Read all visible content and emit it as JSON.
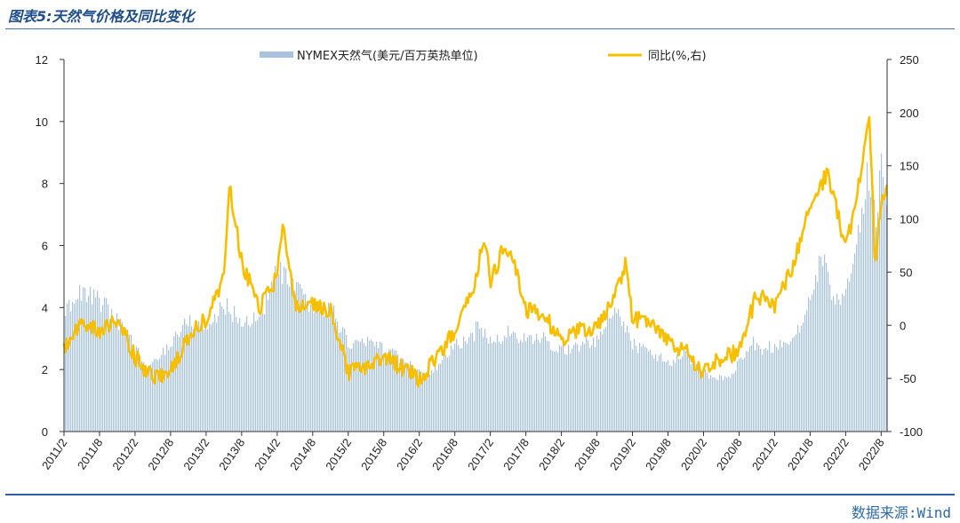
{
  "header": {
    "title": "图表5:天然气价格及同比变化"
  },
  "footer": {
    "source": "数据来源:Wind"
  },
  "colors": {
    "bars": "#a9c2df",
    "line": "#f7bf00",
    "axis": "#333333",
    "title": "#1f4e8a",
    "source": "#2d6aa6"
  },
  "chart_data": {
    "type": "area",
    "legend": {
      "placement": "top",
      "bar_label": "NYMEX天然气(美元/百万英热单位)",
      "line_label": "同比(%,右)"
    },
    "x_tick_labels": [
      "2011/2",
      "2011/8",
      "2012/2",
      "2012/8",
      "2013/2",
      "2013/8",
      "2014/2",
      "2014/8",
      "2015/2",
      "2015/8",
      "2016/2",
      "2016/8",
      "2017/2",
      "2017/8",
      "2018/2",
      "2018/8",
      "2019/2",
      "2019/8",
      "2020/2",
      "2020/8",
      "2021/2",
      "2021/8",
      "2022/2",
      "2022/8"
    ],
    "y_left": {
      "min": 0,
      "max": 12,
      "ticks": [
        0,
        2,
        4,
        6,
        8,
        10,
        12
      ]
    },
    "y_right": {
      "min": -100,
      "max": 250,
      "ticks": [
        -100,
        -50,
        0,
        50,
        100,
        150,
        200,
        250
      ]
    },
    "grid": false,
    "series": [
      {
        "name": "NYMEX天然气(美元/百万英热单位)",
        "axis": "left",
        "style": "bars",
        "points": [
          [
            "2011/2",
            4.0
          ],
          [
            "2011/5",
            4.5
          ],
          [
            "2011/8",
            4.2
          ],
          [
            "2011/11",
            3.6
          ],
          [
            "2012/2",
            2.7
          ],
          [
            "2012/4",
            2.0
          ],
          [
            "2012/6",
            2.4
          ],
          [
            "2012/8",
            2.9
          ],
          [
            "2012/11",
            3.6
          ],
          [
            "2013/2",
            3.3
          ],
          [
            "2013/5",
            4.1
          ],
          [
            "2013/8",
            3.5
          ],
          [
            "2013/11",
            3.7
          ],
          [
            "2014/2",
            5.2
          ],
          [
            "2014/5",
            4.6
          ],
          [
            "2014/8",
            3.9
          ],
          [
            "2014/11",
            4.0
          ],
          [
            "2015/2",
            2.8
          ],
          [
            "2015/5",
            2.9
          ],
          [
            "2015/8",
            2.7
          ],
          [
            "2015/11",
            2.3
          ],
          [
            "2016/2",
            1.9
          ],
          [
            "2016/3",
            1.7
          ],
          [
            "2016/5",
            2.1
          ],
          [
            "2016/8",
            2.8
          ],
          [
            "2016/11",
            3.0
          ],
          [
            "2016/12",
            3.6
          ],
          [
            "2017/2",
            2.8
          ],
          [
            "2017/5",
            3.2
          ],
          [
            "2017/8",
            2.9
          ],
          [
            "2017/11",
            3.0
          ],
          [
            "2018/2",
            2.6
          ],
          [
            "2018/5",
            2.8
          ],
          [
            "2018/8",
            2.9
          ],
          [
            "2018/11",
            4.0
          ],
          [
            "2019/2",
            2.8
          ],
          [
            "2019/5",
            2.6
          ],
          [
            "2019/8",
            2.2
          ],
          [
            "2019/11",
            2.5
          ],
          [
            "2020/2",
            1.9
          ],
          [
            "2020/4",
            1.7
          ],
          [
            "2020/6",
            1.7
          ],
          [
            "2020/8",
            2.3
          ],
          [
            "2020/10",
            2.9
          ],
          [
            "2020/12",
            2.6
          ],
          [
            "2021/2",
            2.8
          ],
          [
            "2021/5",
            3.0
          ],
          [
            "2021/8",
            4.2
          ],
          [
            "2021/10",
            5.7
          ],
          [
            "2021/12",
            4.0
          ],
          [
            "2022/2",
            4.5
          ],
          [
            "2022/4",
            6.5
          ],
          [
            "2022/6",
            8.5
          ],
          [
            "2022/7",
            6.5
          ],
          [
            "2022/8",
            9.3
          ],
          [
            "2022/9",
            7.0
          ]
        ]
      },
      {
        "name": "同比(%,右)",
        "axis": "right",
        "style": "line",
        "points": [
          [
            "2011/2",
            -25
          ],
          [
            "2011/5",
            5
          ],
          [
            "2011/8",
            -5
          ],
          [
            "2011/11",
            5
          ],
          [
            "2012/2",
            -30
          ],
          [
            "2012/5",
            -50
          ],
          [
            "2012/8",
            -45
          ],
          [
            "2012/11",
            -10
          ],
          [
            "2013/2",
            5
          ],
          [
            "2013/5",
            45
          ],
          [
            "2013/6",
            130
          ],
          [
            "2013/8",
            60
          ],
          [
            "2013/11",
            15
          ],
          [
            "2014/2",
            45
          ],
          [
            "2014/3",
            95
          ],
          [
            "2014/5",
            20
          ],
          [
            "2014/8",
            20
          ],
          [
            "2014/11",
            15
          ],
          [
            "2015/2",
            -45
          ],
          [
            "2015/5",
            -40
          ],
          [
            "2015/8",
            -30
          ],
          [
            "2015/11",
            -40
          ],
          [
            "2016/2",
            -50
          ],
          [
            "2016/5",
            -30
          ],
          [
            "2016/8",
            -5
          ],
          [
            "2016/11",
            30
          ],
          [
            "2017/1",
            85
          ],
          [
            "2017/2",
            40
          ],
          [
            "2017/4",
            70
          ],
          [
            "2017/6",
            60
          ],
          [
            "2017/8",
            15
          ],
          [
            "2017/11",
            10
          ],
          [
            "2018/2",
            -15
          ],
          [
            "2018/5",
            -5
          ],
          [
            "2018/8",
            0
          ],
          [
            "2018/11",
            25
          ],
          [
            "2019/1",
            60
          ],
          [
            "2019/2",
            5
          ],
          [
            "2019/5",
            5
          ],
          [
            "2019/8",
            -15
          ],
          [
            "2019/11",
            -25
          ],
          [
            "2020/2",
            -45
          ],
          [
            "2020/5",
            -30
          ],
          [
            "2020/8",
            -25
          ],
          [
            "2020/11",
            30
          ],
          [
            "2021/2",
            15
          ],
          [
            "2021/5",
            55
          ],
          [
            "2021/8",
            110
          ],
          [
            "2021/11",
            145
          ],
          [
            "2022/2",
            70
          ],
          [
            "2022/5",
            155
          ],
          [
            "2022/6",
            200
          ],
          [
            "2022/7",
            50
          ],
          [
            "2022/8",
            120
          ],
          [
            "2022/9",
            125
          ]
        ]
      }
    ]
  }
}
